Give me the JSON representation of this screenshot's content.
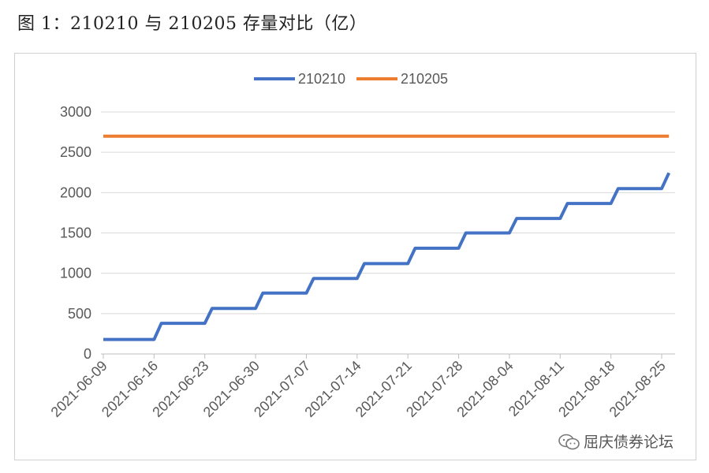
{
  "title": "图 1：210210 与 210205 存量对比（亿）",
  "watermark": "屈庆债券论坛",
  "chart_data": {
    "type": "line",
    "ylim": [
      0,
      3000
    ],
    "yticks": [
      0,
      500,
      1000,
      1500,
      2000,
      2500,
      3000
    ],
    "grid": true,
    "legend_position": "top",
    "x_tick_labels": [
      "2021-06-09",
      "2021-06-16",
      "2021-06-23",
      "2021-06-30",
      "2021-07-07",
      "2021-07-14",
      "2021-07-21",
      "2021-07-28",
      "2021-08-04",
      "2021-08-11",
      "2021-08-18",
      "2021-08-25"
    ],
    "x": [
      "2021-06-09",
      "2021-06-10",
      "2021-06-11",
      "2021-06-14",
      "2021-06-15",
      "2021-06-16",
      "2021-06-17",
      "2021-06-18",
      "2021-06-21",
      "2021-06-22",
      "2021-06-23",
      "2021-06-24",
      "2021-06-25",
      "2021-06-28",
      "2021-06-29",
      "2021-06-30",
      "2021-07-01",
      "2021-07-02",
      "2021-07-05",
      "2021-07-06",
      "2021-07-07",
      "2021-07-08",
      "2021-07-09",
      "2021-07-12",
      "2021-07-13",
      "2021-07-14",
      "2021-07-15",
      "2021-07-16",
      "2021-07-19",
      "2021-07-20",
      "2021-07-21",
      "2021-07-22",
      "2021-07-23",
      "2021-07-26",
      "2021-07-27",
      "2021-07-28",
      "2021-07-29",
      "2021-07-30",
      "2021-08-02",
      "2021-08-03",
      "2021-08-04",
      "2021-08-05",
      "2021-08-06",
      "2021-08-09",
      "2021-08-10",
      "2021-08-11",
      "2021-08-12",
      "2021-08-13",
      "2021-08-16",
      "2021-08-17",
      "2021-08-18",
      "2021-08-19",
      "2021-08-20",
      "2021-08-23",
      "2021-08-24",
      "2021-08-25",
      "2021-08-26"
    ],
    "series": [
      {
        "name": "210210",
        "color": "#4472C4",
        "values": [
          180,
          180,
          180,
          180,
          180,
          180,
          380,
          380,
          380,
          380,
          380,
          565,
          565,
          565,
          565,
          565,
          755,
          755,
          755,
          755,
          755,
          935,
          935,
          935,
          935,
          935,
          1120,
          1120,
          1120,
          1120,
          1120,
          1310,
          1310,
          1310,
          1310,
          1310,
          1500,
          1500,
          1500,
          1500,
          1500,
          1680,
          1680,
          1680,
          1680,
          1680,
          1865,
          1865,
          1865,
          1865,
          1865,
          2050,
          2050,
          2050,
          2050,
          2050,
          2245
        ]
      },
      {
        "name": "210205",
        "color": "#ED7D31",
        "values": [
          2700,
          2700,
          2700,
          2700,
          2700,
          2700,
          2700,
          2700,
          2700,
          2700,
          2700,
          2700,
          2700,
          2700,
          2700,
          2700,
          2700,
          2700,
          2700,
          2700,
          2700,
          2700,
          2700,
          2700,
          2700,
          2700,
          2700,
          2700,
          2700,
          2700,
          2700,
          2700,
          2700,
          2700,
          2700,
          2700,
          2700,
          2700,
          2700,
          2700,
          2700,
          2700,
          2700,
          2700,
          2700,
          2700,
          2700,
          2700,
          2700,
          2700,
          2700,
          2700,
          2700,
          2700,
          2700,
          2700,
          2700
        ]
      }
    ]
  }
}
